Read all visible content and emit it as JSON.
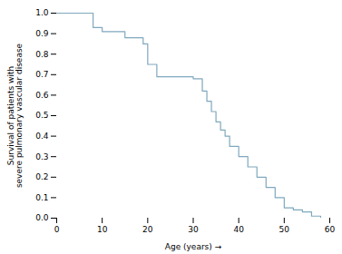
{
  "chart_data": {
    "type": "line",
    "x": [
      0,
      8,
      8,
      10,
      10,
      15,
      15,
      19,
      19,
      20,
      20,
      22,
      22,
      30,
      30,
      32,
      32,
      33,
      33,
      34,
      34,
      35,
      35,
      36,
      36,
      37,
      37,
      38,
      38,
      40,
      40,
      42,
      42,
      44,
      44,
      46,
      46,
      48,
      48,
      50,
      50,
      52,
      52,
      54,
      54,
      56,
      56,
      58,
      58,
      60
    ],
    "values": [
      1.0,
      1.0,
      0.93,
      0.93,
      0.91,
      0.91,
      0.88,
      0.88,
      0.85,
      0.85,
      0.75,
      0.75,
      0.69,
      0.69,
      0.68,
      0.68,
      0.62,
      0.62,
      0.57,
      0.57,
      0.52,
      0.52,
      0.47,
      0.47,
      0.43,
      0.43,
      0.4,
      0.4,
      0.35,
      0.35,
      0.3,
      0.3,
      0.25,
      0.25,
      0.2,
      0.2,
      0.15,
      0.15,
      0.1,
      0.1,
      0.05,
      0.05,
      0.04,
      0.04,
      0.03,
      0.03,
      0.01,
      0.01,
      0.0,
      0.0
    ],
    "color": "#7FA8BE",
    "xlabel": "Age (years)",
    "ylabel": "Survival of patients with\nsevere pulmonary vascular disease",
    "xlim": [
      0,
      60
    ],
    "ylim": [
      0.0,
      1.0
    ],
    "xticks": [
      0,
      10,
      20,
      30,
      40,
      50,
      60
    ],
    "yticks": [
      {
        "value": 0.0,
        "label": "0.0"
      },
      0.1,
      0.2,
      0.3,
      0.4,
      0.5,
      0.6,
      0.7,
      0.8,
      0.9,
      {
        "value": 1.0,
        "label": "1.0"
      }
    ]
  }
}
